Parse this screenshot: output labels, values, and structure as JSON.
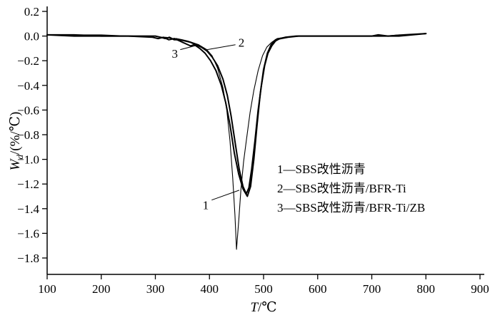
{
  "chart_data": {
    "type": "line",
    "title": "",
    "xlabel": {
      "italic": "T",
      "rest": "/℃"
    },
    "ylabel": {
      "italic": "W",
      "sub": "d",
      "rest": "/(%/℃)"
    },
    "xlim": [
      100,
      900
    ],
    "ylim": [
      -1.8,
      0.2
    ],
    "grid": false,
    "color": "#000000",
    "background": "#ffffff",
    "xticks": [
      100,
      200,
      300,
      400,
      500,
      600,
      700,
      800,
      900
    ],
    "xtick_labels": [
      "100",
      "200",
      "300",
      "400",
      "500",
      "600",
      "700",
      "800",
      "900"
    ],
    "yticks": [
      0.2,
      0.0,
      -0.2,
      -0.4,
      -0.6,
      -0.8,
      -1.0,
      -1.2,
      -1.4,
      -1.6,
      -1.8
    ],
    "ytick_labels": [
      "0.2",
      "0.0",
      "−0.2",
      "−0.4",
      "−0.6",
      "−0.8",
      "−1.0",
      "−1.2",
      "−1.4",
      "−1.6",
      "−1.8"
    ],
    "legend_position": "inside-lower-right",
    "legend": [
      "1—SBS改性沥青",
      "2—SBS改性沥青/BFR-Ti",
      "3—SBS改性沥青/BFR-Ti/ZB"
    ],
    "annotations": [
      {
        "text": "1",
        "x": 393,
        "y": -1.37,
        "line": [
          404,
          -1.33,
          455,
          -1.25
        ]
      },
      {
        "text": "2",
        "x": 459,
        "y": -0.05,
        "line": [
          448,
          -0.07,
          396,
          -0.11
        ]
      },
      {
        "text": "3",
        "x": 336,
        "y": -0.14,
        "line": [
          346,
          -0.11,
          381,
          -0.07
        ]
      }
    ],
    "series": [
      {
        "name": "SBS改性沥青",
        "label": "1",
        "stroke_width": 1.1,
        "points": [
          [
            100,
            0.01
          ],
          [
            150,
            0.01
          ],
          [
            200,
            0.01
          ],
          [
            250,
            0
          ],
          [
            300,
            0
          ],
          [
            310,
            -0.01
          ],
          [
            320,
            -0.01
          ],
          [
            330,
            -0.02
          ],
          [
            340,
            -0.02
          ],
          [
            360,
            -0.04
          ],
          [
            380,
            -0.07
          ],
          [
            395,
            -0.11
          ],
          [
            405,
            -0.16
          ],
          [
            415,
            -0.26
          ],
          [
            425,
            -0.42
          ],
          [
            432,
            -0.6
          ],
          [
            438,
            -0.85
          ],
          [
            443,
            -1.15
          ],
          [
            447,
            -1.45
          ],
          [
            450,
            -1.73
          ],
          [
            454,
            -1.5
          ],
          [
            458,
            -1.25
          ],
          [
            463,
            -1.02
          ],
          [
            468,
            -0.85
          ],
          [
            475,
            -0.62
          ],
          [
            482,
            -0.44
          ],
          [
            490,
            -0.28
          ],
          [
            498,
            -0.16
          ],
          [
            506,
            -0.09
          ],
          [
            515,
            -0.05
          ],
          [
            525,
            -0.02
          ],
          [
            540,
            -0.01
          ],
          [
            560,
            0
          ],
          [
            600,
            0
          ],
          [
            650,
            0
          ],
          [
            700,
            0
          ],
          [
            710,
            0.01
          ],
          [
            725,
            0
          ],
          [
            750,
            0.01
          ],
          [
            775,
            0.01
          ],
          [
            800,
            0.02
          ]
        ]
      },
      {
        "name": "SBS改性沥青/BFR-Ti",
        "label": "2",
        "stroke_width": 2,
        "points": [
          [
            100,
            0.01
          ],
          [
            150,
            0.01
          ],
          [
            200,
            0
          ],
          [
            250,
            0
          ],
          [
            300,
            0
          ],
          [
            310,
            -0.01
          ],
          [
            318,
            -0.02
          ],
          [
            326,
            -0.01
          ],
          [
            335,
            -0.03
          ],
          [
            345,
            -0.03
          ],
          [
            355,
            -0.04
          ],
          [
            365,
            -0.05
          ],
          [
            375,
            -0.07
          ],
          [
            385,
            -0.09
          ],
          [
            395,
            -0.12
          ],
          [
            405,
            -0.17
          ],
          [
            415,
            -0.24
          ],
          [
            425,
            -0.35
          ],
          [
            433,
            -0.48
          ],
          [
            440,
            -0.65
          ],
          [
            448,
            -0.88
          ],
          [
            455,
            -1.08
          ],
          [
            462,
            -1.22
          ],
          [
            468,
            -1.28
          ],
          [
            473,
            -1.23
          ],
          [
            478,
            -1.08
          ],
          [
            484,
            -0.85
          ],
          [
            490,
            -0.6
          ],
          [
            496,
            -0.4
          ],
          [
            502,
            -0.24
          ],
          [
            508,
            -0.14
          ],
          [
            515,
            -0.08
          ],
          [
            522,
            -0.04
          ],
          [
            530,
            -0.02
          ],
          [
            540,
            -0.01
          ],
          [
            560,
            0
          ],
          [
            600,
            0
          ],
          [
            650,
            0
          ],
          [
            700,
            0
          ],
          [
            712,
            0.01
          ],
          [
            730,
            0
          ],
          [
            760,
            0.01
          ],
          [
            800,
            0.02
          ]
        ]
      },
      {
        "name": "SBS改性沥青/BFR-Ti/ZB",
        "label": "3",
        "stroke_width": 2,
        "points": [
          [
            100,
            0.01
          ],
          [
            150,
            0
          ],
          [
            200,
            0
          ],
          [
            250,
            0
          ],
          [
            295,
            -0.01
          ],
          [
            305,
            -0.02
          ],
          [
            315,
            -0.01
          ],
          [
            325,
            -0.03
          ],
          [
            335,
            -0.02
          ],
          [
            345,
            -0.04
          ],
          [
            355,
            -0.06
          ],
          [
            365,
            -0.08
          ],
          [
            372,
            -0.07
          ],
          [
            382,
            -0.1
          ],
          [
            392,
            -0.14
          ],
          [
            402,
            -0.2
          ],
          [
            412,
            -0.28
          ],
          [
            422,
            -0.4
          ],
          [
            430,
            -0.54
          ],
          [
            438,
            -0.72
          ],
          [
            446,
            -0.95
          ],
          [
            454,
            -1.12
          ],
          [
            462,
            -1.24
          ],
          [
            470,
            -1.3
          ],
          [
            476,
            -1.22
          ],
          [
            482,
            -1.0
          ],
          [
            488,
            -0.72
          ],
          [
            494,
            -0.46
          ],
          [
            500,
            -0.27
          ],
          [
            507,
            -0.14
          ],
          [
            514,
            -0.07
          ],
          [
            522,
            -0.03
          ],
          [
            532,
            -0.02
          ],
          [
            545,
            -0.01
          ],
          [
            565,
            0
          ],
          [
            600,
            0
          ],
          [
            650,
            0
          ],
          [
            700,
            0
          ],
          [
            750,
            0
          ],
          [
            800,
            0.02
          ]
        ]
      }
    ]
  }
}
